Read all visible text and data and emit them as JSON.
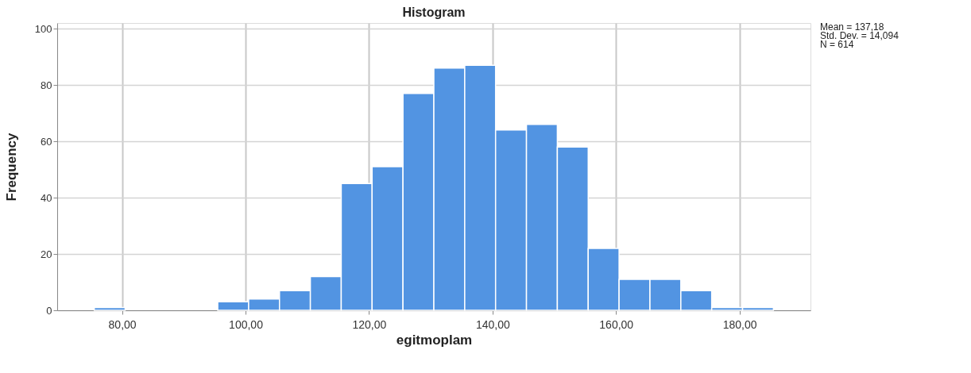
{
  "chart_data": {
    "type": "histogram",
    "title": "Histogram",
    "xlabel": "egitmoplam",
    "ylabel": "Frequency",
    "bins": [
      75.5,
      80.5,
      85.5,
      90.5,
      95.5,
      100.5,
      105.5,
      110.5,
      115.5,
      120.5,
      125.5,
      130.5,
      135.5,
      140.5,
      145.5,
      150.5,
      155.5,
      160.5,
      165.5,
      170.5,
      175.5,
      180.5,
      185.5
    ],
    "values": [
      1,
      0,
      0,
      0,
      3,
      4,
      7,
      12,
      45,
      51,
      77,
      86,
      87,
      64,
      66,
      58,
      22,
      11,
      11,
      7,
      1,
      1
    ],
    "color": "#5294e2",
    "xlim": [
      69.5,
      191.5
    ],
    "xticks": [
      {
        "value": 80,
        "label": "80,00"
      },
      {
        "value": 100,
        "label": "100,00"
      },
      {
        "value": 120,
        "label": "120,00"
      },
      {
        "value": 140,
        "label": "140,00"
      },
      {
        "value": 160,
        "label": "160,00"
      },
      {
        "value": 180,
        "label": "180,00"
      }
    ],
    "ylim": [
      0,
      102
    ],
    "yticks": [
      0,
      20,
      40,
      60,
      80,
      100
    ],
    "grid": true,
    "annotations": [
      "Mean = 137,18",
      "Std. Dev. = 14,094",
      "N = 614"
    ]
  }
}
